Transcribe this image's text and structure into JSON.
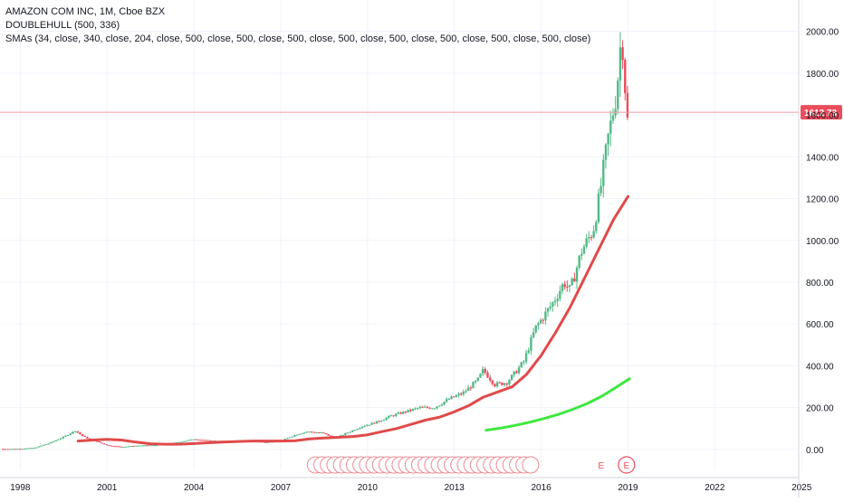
{
  "chart_data": {
    "type": "candlestick",
    "title": "AMAZON COM INC, 1M, Cboe BZX",
    "indicators": [
      "DOUBLEHULL (500, 336)",
      "SMAs (34, close, 340, close, 204, close, 500, close, 500, close, 500, close, 500, close, 500, close, 500, close, 500, close, 500, close)"
    ],
    "last_price": "1612.73",
    "x_tick_labels": [
      "1998",
      "2001",
      "2004",
      "2007",
      "2010",
      "2013",
      "2016",
      "2019",
      "2022",
      "2025"
    ],
    "y_tick_labels": [
      "0.00",
      "200.00",
      "400.00",
      "600.00",
      "800.00",
      "1000.00",
      "1200.00",
      "1400.00",
      "1600.00",
      "1800.00",
      "2000.00"
    ],
    "xlim": [
      1997.3,
      2024.9
    ],
    "ylim": [
      -100,
      2150
    ],
    "grid": true,
    "earnings_marker_label": "E",
    "colors": {
      "up": "#53b987",
      "down": "#eb4d5c",
      "sma_red": "#e04a4a",
      "sma_green": "#3ee83e",
      "price_line": "#f39aa3",
      "grid": "#f0f3fa",
      "axis_text": "#131722"
    },
    "price_series": {
      "dates": [
        1997.4,
        1998.0,
        1998.5,
        1999.0,
        1999.5,
        1999.9,
        2000.2,
        2000.6,
        2001.0,
        2001.5,
        2002.0,
        2002.5,
        2003.0,
        2003.5,
        2004.0,
        2004.5,
        2005.0,
        2005.5,
        2006.0,
        2006.5,
        2007.0,
        2007.5,
        2007.9,
        2008.4,
        2008.9,
        2009.3,
        2009.8,
        2010.3,
        2010.8,
        2011.3,
        2011.8,
        2012.3,
        2012.8,
        2013.3,
        2013.8,
        2014.0,
        2014.4,
        2014.8,
        2015.0,
        2015.4,
        2015.8,
        2016.0,
        2016.4,
        2016.8,
        2017.0,
        2017.4,
        2017.8,
        2018.0,
        2018.3,
        2018.6,
        2018.75,
        2018.85,
        2018.95,
        2019.05
      ],
      "close": [
        2,
        3,
        8,
        30,
        60,
        90,
        60,
        40,
        20,
        12,
        18,
        20,
        25,
        35,
        50,
        42,
        40,
        35,
        40,
        35,
        40,
        70,
        85,
        80,
        55,
        80,
        110,
        130,
        160,
        180,
        200,
        200,
        240,
        270,
        330,
        380,
        310,
        320,
        350,
        420,
        580,
        620,
        700,
        800,
        760,
        950,
        1050,
        1200,
        1480,
        1700,
        1950,
        1920,
        1550,
        1612
      ]
    },
    "series": [
      {
        "name": "SMA 34",
        "color": "#e04a4a",
        "x": [
          2000.0,
          2000.5,
          2001.0,
          2001.5,
          2002.0,
          2002.5,
          2003.0,
          2003.5,
          2004.0,
          2004.5,
          2005.0,
          2005.5,
          2006.0,
          2006.5,
          2007.0,
          2007.5,
          2008.0,
          2008.5,
          2009.0,
          2009.5,
          2010.0,
          2010.5,
          2011.0,
          2011.5,
          2012.0,
          2012.5,
          2013.0,
          2013.5,
          2014.0,
          2014.5,
          2015.0,
          2015.5,
          2016.0,
          2016.5,
          2017.0,
          2017.5,
          2018.0,
          2018.5,
          2019.0
        ],
        "y": [
          40,
          45,
          48,
          45,
          35,
          27,
          25,
          25,
          28,
          32,
          35,
          38,
          40,
          40,
          40,
          42,
          50,
          55,
          58,
          62,
          70,
          85,
          100,
          120,
          140,
          155,
          180,
          210,
          250,
          275,
          300,
          360,
          450,
          560,
          680,
          820,
          960,
          1100,
          1210
        ]
      },
      {
        "name": "SMA 340",
        "color": "#3ee83e",
        "x": [
          2014.1,
          2014.6,
          2015.1,
          2015.6,
          2016.1,
          2016.6,
          2017.1,
          2017.6,
          2018.1,
          2018.6,
          2019.05
        ],
        "y": [
          92,
          102,
          115,
          130,
          148,
          168,
          192,
          220,
          255,
          298,
          338
        ]
      }
    ]
  }
}
